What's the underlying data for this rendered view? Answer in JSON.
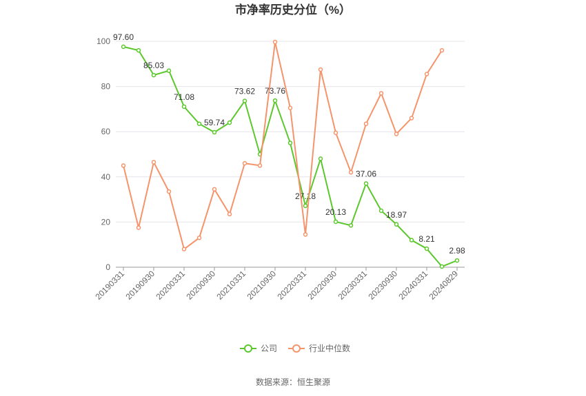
{
  "chart_data": {
    "type": "line",
    "title": "市净率历史分位（%）",
    "categories": [
      "20190331",
      null,
      "20190930",
      null,
      "20200331",
      null,
      "20200930",
      null,
      "20210331",
      null,
      "20210930",
      null,
      "20220331",
      null,
      "20220930",
      null,
      "20230331",
      null,
      "20230930",
      null,
      "20240331",
      null,
      "20240829"
    ],
    "series": [
      {
        "name": "公司",
        "color": "#5cc72d",
        "values": [
          97.6,
          96,
          85.03,
          87,
          71.08,
          63.5,
          59.74,
          64,
          73.62,
          50,
          73.76,
          55,
          27.18,
          48,
          20.13,
          18.5,
          37.06,
          25,
          18.97,
          12,
          8.21,
          0.3,
          2.98
        ],
        "value_labels": [
          "97.60",
          null,
          "85.03",
          null,
          "71.08",
          null,
          "59.74",
          null,
          "73.62",
          null,
          "73.76",
          null,
          "27.18",
          null,
          "20.13",
          null,
          "37.06",
          null,
          "18.97",
          null,
          "8.21",
          null,
          "2.98"
        ]
      },
      {
        "name": "行业中位数",
        "color": "#f5936a",
        "values": [
          45,
          17.5,
          46.5,
          33.5,
          8,
          13,
          34.5,
          23.5,
          46,
          45,
          99.7,
          70.5,
          14.5,
          87.5,
          59.5,
          42,
          63.5,
          77,
          59,
          66,
          85.5,
          96,
          null
        ]
      }
    ],
    "ylim": [
      0,
      100
    ],
    "yticks": [
      0,
      20,
      40,
      60,
      80,
      100
    ],
    "grid": true,
    "source": "数据来源：恒生聚源"
  }
}
